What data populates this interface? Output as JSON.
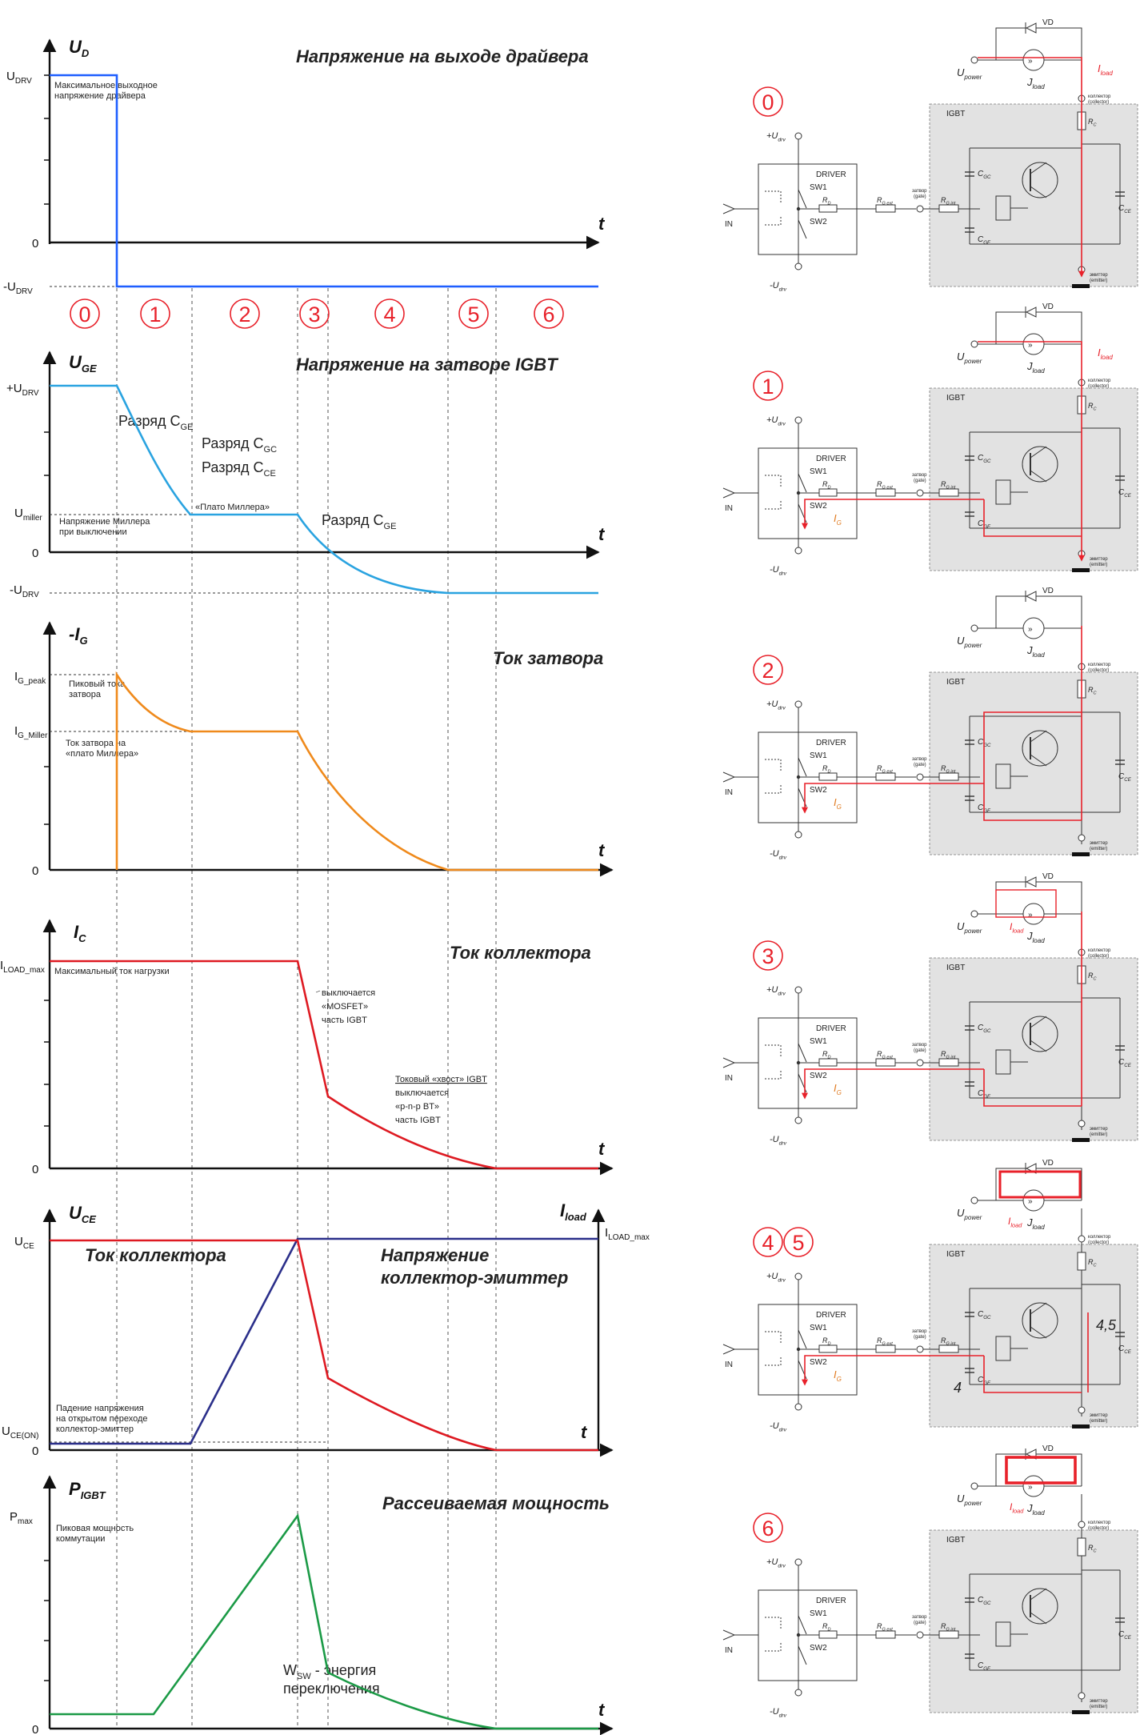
{
  "colors": {
    "ud": "#1f5fff",
    "uge": "#2aa3e0",
    "ig": "#ef8a1c",
    "ic": "#de1a22",
    "uce": "#2b2f8a",
    "p": "#1b9a46",
    "phase": "#e8212a",
    "load": "#e8212a",
    "gate": "#e07a1f",
    "box": "#e2e2e2"
  },
  "waves": {
    "title_ud": "Напряжение на выходе драйвера",
    "title_uge": "Напряжение на затворе IGBT",
    "title_ig": "Ток затвора",
    "title_ic": "Ток коллектора",
    "title_uce": "Напряжение коллектор-эмиттер",
    "title_uce_line1": "Напряжение",
    "title_uce_line2": "коллектор-эмиттер",
    "title_ic2": "Ток коллектора",
    "title_p": "Рассеиваемая мощность",
    "axis_ud": "U",
    "axis_ud_sub": "D",
    "axis_uge": "U",
    "axis_uge_sub": "GE",
    "axis_ig": "-I",
    "axis_ig_sub": "G",
    "axis_ic": "I",
    "axis_ic_sub": "C",
    "axis_uce": "U",
    "axis_uce_sub": "CE",
    "axis_iload": "I",
    "axis_iload_sub": "load",
    "axis_p": "P",
    "axis_p_sub": "IGBT",
    "t": "t",
    "tick_udrv": "U",
    "tick_udrv_sub": "DRV",
    "tick_mudrv": "-U",
    "tick_mudrv_sub": "DRV",
    "tick_pudrv": "+U",
    "tick_pudrv_sub": "DRV",
    "tick_umiller": "U",
    "tick_umiller_sub": "miller",
    "tick_igpeak": "I",
    "tick_igpeak_sub": "G_peak",
    "tick_igmiller": "I",
    "tick_igmiller_sub": "G_Miller",
    "tick_iloadmax": "I",
    "tick_iloadmax_sub": "LOAD_max",
    "tick_uce": "U",
    "tick_uce_sub": "CE",
    "tick_uceon": "U",
    "tick_uceon_sub": "CE(ON)",
    "tick_iloadmax2": "I",
    "tick_iloadmax2_sub": "LOAD_max",
    "tick_pmax": "P",
    "tick_pmax_sub": "max",
    "zero": "0",
    "note_udrv_1": "Максимальное выходное",
    "note_udrv_2": "напряжение драйвера",
    "note_miller_1": "Напряжение Миллера",
    "note_miller_2": "при выключении",
    "note_igpeak_1": "Пиковый тока",
    "note_igpeak_2": "затвора",
    "note_igmiller_1": "Ток затвора на",
    "note_igmiller_2": "«плато Миллера»",
    "note_iload": "Максимальный ток нагрузки",
    "note_uceon_1": "Падение напряжения",
    "note_uceon_2": "на открытом переходе",
    "note_uceon_3": "коллектор-эмиттер",
    "note_pmax_1": "Пиковая мощность",
    "note_pmax_2": "коммутации",
    "ann_dis_cge": "Разряд C",
    "ann_dis_cge_sub": "GE",
    "ann_dis_cgc": "Разряд C",
    "ann_dis_cgc_sub": "GC",
    "ann_dis_cce": "Разряд C",
    "ann_dis_cce_sub": "CE",
    "ann_plateau": "«Плато Миллера»",
    "ann_dis_cge2": "Разряд C",
    "ann_dis_cge2_sub": "GE",
    "ann_mos_1": "выключается",
    "ann_mos_2": "«MOSFET»",
    "ann_mos_3": "часть IGBT",
    "ann_tail_1": "Токовый «хвост» IGBT",
    "ann_tail_2": "выключается",
    "ann_tail_3": "«p-n-p BT»",
    "ann_tail_4": "часть IGBT",
    "ann_wsw_1": "W",
    "ann_wsw_sub": "SW",
    "ann_wsw_rest": " - энергия",
    "ann_wsw_2": "переключения"
  },
  "phases": [
    "0",
    "1",
    "2",
    "3",
    "4",
    "5",
    "6"
  ],
  "circuits": {
    "labels": [
      "0",
      "1",
      "2",
      "3",
      "4",
      "5",
      "6"
    ],
    "driver": "DRIVER",
    "sw1": "SW1",
    "sw2": "SW2",
    "in": "IN",
    "igbt": "IGBT",
    "vd": "VD",
    "udrv_pos": "+U",
    "udrv_neg": "-U",
    "drv_sub": "drv",
    "upower": "U",
    "upower_sub": "power",
    "jload": "J",
    "jload_sub": "load",
    "iload": "I",
    "iload_sub": "load",
    "ig": "I",
    "ig_sub": "G",
    "rd": "R",
    "rd_sub": "D",
    "rgext": "R",
    "rgext_sub": "G ext",
    "rgint": "R",
    "rgint_sub": "G int",
    "rc": "R",
    "rc_sub": "C",
    "cgc": "C",
    "cgc_sub": "GC",
    "cge": "C",
    "cge_sub": "GE",
    "cce": "C",
    "cce_sub": "CE",
    "gate_1": "затвор",
    "gate_2": "(gate)",
    "coll_1": "коллектор",
    "coll_2": "(collector)",
    "emit_1": "эмиттер",
    "emit_2": "(emitter)",
    "mark_45": "4,5",
    "mark_4": "4"
  }
}
